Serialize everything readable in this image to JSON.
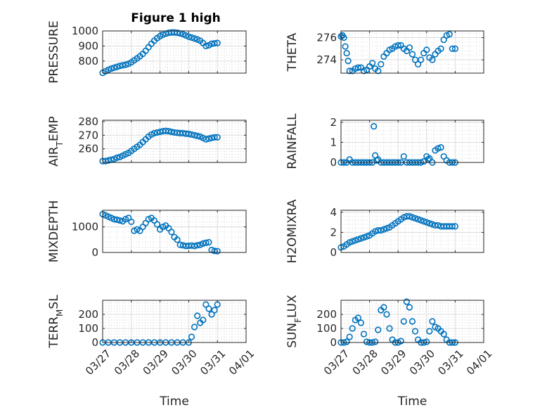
{
  "figure": {
    "title": "Figure 1 high",
    "marker_color": "#0072BD"
  },
  "chart_data": [
    {
      "type": "scatter",
      "ylabel": "PRESSURE",
      "xlabel": "",
      "title": "Figure 1 high",
      "xlim": [
        0,
        5
      ],
      "ylim": [
        720,
        1000
      ],
      "yticks": [
        800,
        900,
        1000
      ],
      "xticklabels": [],
      "grid": true,
      "series": [
        {
          "x": [
            0,
            0.1,
            0.2,
            0.3,
            0.4,
            0.5,
            0.6,
            0.7,
            0.8,
            0.9,
            1.0,
            1.1,
            1.2,
            1.3,
            1.4,
            1.5,
            1.6,
            1.7,
            1.8,
            1.9,
            2.0,
            2.1,
            2.2,
            2.3,
            2.4,
            2.5,
            2.6,
            2.7,
            2.8,
            2.9,
            3.0,
            3.1,
            3.2,
            3.3,
            3.4,
            3.5,
            3.6,
            3.7,
            3.8,
            3.9,
            4.0
          ],
          "y": [
            722,
            732,
            742,
            750,
            756,
            762,
            768,
            772,
            776,
            782,
            792,
            805,
            818,
            832,
            848,
            868,
            892,
            915,
            935,
            952,
            965,
            975,
            982,
            987,
            990,
            990,
            988,
            984,
            978,
            970,
            962,
            956,
            950,
            944,
            935,
            920,
            900,
            905,
            915,
            918,
            920
          ]
        }
      ]
    },
    {
      "type": "scatter",
      "ylabel": "THETA",
      "xlabel": "",
      "xlim": [
        0,
        5
      ],
      "ylim": [
        272.8,
        276.6
      ],
      "yticks": [
        274,
        276
      ],
      "xticklabels": [],
      "grid": true,
      "series": [
        {
          "x": [
            0,
            0.05,
            0.1,
            0.15,
            0.2,
            0.25,
            0.3,
            0.4,
            0.5,
            0.6,
            0.7,
            0.8,
            0.9,
            1.0,
            1.1,
            1.2,
            1.3,
            1.4,
            1.5,
            1.6,
            1.7,
            1.8,
            1.9,
            2.0,
            2.1,
            2.2,
            2.3,
            2.4,
            2.5,
            2.6,
            2.7,
            2.8,
            2.9,
            3.0,
            3.1,
            3.2,
            3.3,
            3.4,
            3.5,
            3.6,
            3.7,
            3.8,
            3.9,
            4.0
          ],
          "y": [
            276.1,
            276.2,
            276.0,
            275.2,
            274.6,
            273.9,
            273.0,
            273.0,
            273.2,
            273.3,
            273.3,
            273.0,
            273.1,
            273.4,
            273.7,
            273.2,
            273.0,
            273.6,
            274.3,
            274.6,
            274.9,
            275.0,
            275.2,
            275.3,
            275.3,
            275.0,
            274.8,
            275.1,
            274.5,
            274.0,
            273.6,
            274.0,
            274.6,
            274.9,
            274.2,
            274.0,
            274.5,
            274.8,
            275.0,
            275.8,
            276.2,
            276.3,
            275.0,
            275.0
          ]
        }
      ]
    },
    {
      "type": "scatter",
      "ylabel": "AIR_TEMP",
      "xlabel": "",
      "xlim": [
        0,
        5
      ],
      "ylim": [
        250,
        281
      ],
      "yticks": [
        260,
        270,
        280
      ],
      "xticklabels": [],
      "grid": true,
      "series": [
        {
          "x": [
            0,
            0.1,
            0.2,
            0.3,
            0.4,
            0.5,
            0.6,
            0.7,
            0.8,
            0.9,
            1.0,
            1.1,
            1.2,
            1.3,
            1.4,
            1.5,
            1.6,
            1.7,
            1.8,
            1.9,
            2.0,
            2.1,
            2.2,
            2.3,
            2.4,
            2.5,
            2.6,
            2.7,
            2.8,
            2.9,
            3.0,
            3.1,
            3.2,
            3.3,
            3.4,
            3.5,
            3.6,
            3.7,
            3.8,
            3.9,
            4.0
          ],
          "y": [
            251,
            251,
            251.5,
            252,
            252.5,
            253.5,
            254,
            255,
            256,
            257,
            258.5,
            260,
            261.5,
            263,
            265,
            267,
            269,
            270.5,
            271.5,
            272,
            272.5,
            273,
            273.2,
            273,
            272.5,
            272,
            271.8,
            271.5,
            271.5,
            271.2,
            271,
            270.5,
            270,
            269.5,
            269,
            268,
            267,
            267.5,
            268,
            268.5,
            268.5
          ]
        }
      ]
    },
    {
      "type": "scatter",
      "ylabel": "RAINFALL",
      "xlabel": "",
      "xlim": [
        0,
        5
      ],
      "ylim": [
        0,
        2.1
      ],
      "yticks": [
        0,
        1,
        2
      ],
      "xticklabels": [],
      "grid": true,
      "series": [
        {
          "x": [
            0,
            0.1,
            0.2,
            0.3,
            0.4,
            0.5,
            0.6,
            0.7,
            0.8,
            0.9,
            1.0,
            1.1,
            1.15,
            1.2,
            1.25,
            1.3,
            1.4,
            1.5,
            1.6,
            1.7,
            1.8,
            1.9,
            2.0,
            2.1,
            2.2,
            2.3,
            2.4,
            2.5,
            2.6,
            2.7,
            2.8,
            2.9,
            3.0,
            3.05,
            3.1,
            3.2,
            3.3,
            3.4,
            3.5,
            3.6,
            3.7,
            3.8,
            3.9,
            4.0
          ],
          "y": [
            0,
            0,
            0,
            0.15,
            0,
            0,
            0,
            0,
            0,
            0,
            0,
            0,
            1.8,
            0.35,
            0.1,
            0.15,
            0,
            0,
            0,
            0,
            0,
            0,
            0,
            0,
            0.3,
            0,
            0,
            0,
            0,
            0,
            0,
            0.05,
            0.3,
            0.15,
            0.2,
            0,
            0.6,
            0.7,
            0.75,
            0.3,
            0.1,
            0,
            0,
            0
          ]
        }
      ]
    },
    {
      "type": "scatter",
      "ylabel": "MIXDEPTH",
      "xlabel": "",
      "xlim": [
        0,
        5
      ],
      "ylim": [
        0,
        1650
      ],
      "yticks": [
        0,
        1000
      ],
      "xticklabels": [],
      "grid": true,
      "series": [
        {
          "x": [
            0,
            0.1,
            0.2,
            0.3,
            0.4,
            0.5,
            0.6,
            0.7,
            0.8,
            0.9,
            1.0,
            1.1,
            1.2,
            1.3,
            1.4,
            1.5,
            1.6,
            1.7,
            1.8,
            1.9,
            2.0,
            2.1,
            2.2,
            2.3,
            2.4,
            2.5,
            2.6,
            2.7,
            2.8,
            2.9,
            3.0,
            3.1,
            3.2,
            3.3,
            3.4,
            3.5,
            3.6,
            3.7,
            3.8,
            3.9,
            4.0
          ],
          "y": [
            1500,
            1450,
            1400,
            1350,
            1300,
            1280,
            1250,
            1220,
            1300,
            1350,
            1200,
            850,
            900,
            850,
            1000,
            1150,
            1300,
            1350,
            1250,
            1100,
            900,
            1000,
            1050,
            950,
            800,
            600,
            500,
            300,
            280,
            250,
            260,
            270,
            250,
            280,
            300,
            350,
            380,
            400,
            100,
            60,
            50
          ]
        }
      ]
    },
    {
      "type": "scatter",
      "ylabel": "H2OMIXRA",
      "xlabel": "",
      "xlim": [
        0,
        5
      ],
      "ylim": [
        0,
        4.2
      ],
      "yticks": [
        0,
        2,
        4
      ],
      "xticklabels": [],
      "grid": true,
      "series": [
        {
          "x": [
            0,
            0.1,
            0.2,
            0.3,
            0.4,
            0.5,
            0.6,
            0.7,
            0.8,
            0.9,
            1.0,
            1.1,
            1.2,
            1.3,
            1.4,
            1.5,
            1.6,
            1.7,
            1.8,
            1.9,
            2.0,
            2.1,
            2.2,
            2.3,
            2.4,
            2.5,
            2.6,
            2.7,
            2.8,
            2.9,
            3.0,
            3.1,
            3.2,
            3.3,
            3.4,
            3.5,
            3.6,
            3.7,
            3.8,
            3.9,
            4.0
          ],
          "y": [
            0.5,
            0.6,
            0.8,
            1.0,
            1.1,
            1.2,
            1.3,
            1.4,
            1.5,
            1.6,
            1.7,
            1.9,
            2.1,
            2.2,
            2.2,
            2.3,
            2.4,
            2.5,
            2.7,
            2.9,
            3.1,
            3.3,
            3.5,
            3.6,
            3.6,
            3.5,
            3.4,
            3.3,
            3.2,
            3.1,
            3.0,
            2.9,
            2.8,
            2.7,
            2.7,
            2.6,
            2.6,
            2.6,
            2.6,
            2.6,
            2.6
          ]
        }
      ]
    },
    {
      "type": "scatter",
      "ylabel": "TERR_MSL",
      "xlabel": "Time",
      "xlim": [
        0,
        5
      ],
      "ylim": [
        0,
        300
      ],
      "yticks": [
        0,
        100,
        200
      ],
      "xticklabels": [
        "03/27",
        "03/28",
        "03/29",
        "03/30",
        "03/31",
        "04/01"
      ],
      "grid": true,
      "series": [
        {
          "x": [
            0,
            0.2,
            0.4,
            0.6,
            0.8,
            1.0,
            1.2,
            1.4,
            1.6,
            1.8,
            2.0,
            2.2,
            2.4,
            2.6,
            2.8,
            3.0,
            3.1,
            3.2,
            3.3,
            3.4,
            3.5,
            3.6,
            3.7,
            3.8,
            3.9,
            4.0
          ],
          "y": [
            0,
            0,
            0,
            0,
            0,
            0,
            0,
            0,
            0,
            0,
            0,
            0,
            0,
            0,
            0,
            0,
            40,
            110,
            190,
            140,
            160,
            270,
            240,
            200,
            230,
            270
          ]
        }
      ]
    },
    {
      "type": "scatter",
      "ylabel": "SUN_FLUX",
      "xlabel": "Time",
      "xlim": [
        0,
        5
      ],
      "ylim": [
        0,
        300
      ],
      "yticks": [
        0,
        100,
        200
      ],
      "xticklabels": [
        "03/27",
        "03/28",
        "03/29",
        "03/30",
        "03/31",
        "04/01"
      ],
      "grid": true,
      "series": [
        {
          "x": [
            0,
            0.1,
            0.2,
            0.3,
            0.4,
            0.5,
            0.6,
            0.7,
            0.8,
            0.9,
            1.0,
            1.1,
            1.2,
            1.3,
            1.4,
            1.5,
            1.6,
            1.7,
            1.8,
            1.9,
            2.0,
            2.1,
            2.2,
            2.3,
            2.4,
            2.5,
            2.6,
            2.7,
            2.8,
            2.9,
            3.0,
            3.1,
            3.2,
            3.3,
            3.4,
            3.5,
            3.6,
            3.7,
            3.8,
            3.9,
            4.0
          ],
          "y": [
            0,
            0,
            5,
            40,
            100,
            160,
            175,
            140,
            60,
            5,
            0,
            0,
            5,
            90,
            230,
            250,
            200,
            100,
            20,
            0,
            0,
            10,
            150,
            290,
            250,
            150,
            80,
            20,
            0,
            0,
            5,
            80,
            150,
            110,
            100,
            80,
            60,
            20,
            0,
            0,
            0
          ]
        }
      ]
    }
  ]
}
